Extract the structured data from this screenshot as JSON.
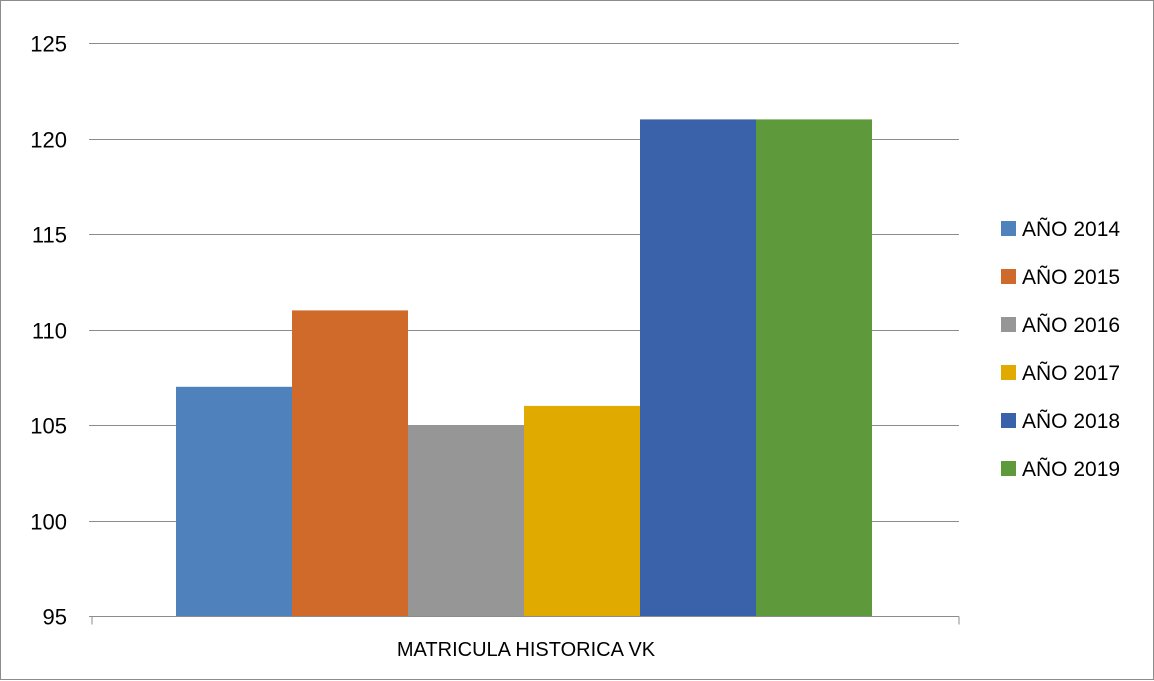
{
  "chart_data": {
    "type": "bar",
    "categories": [
      "MATRICULA HISTORICA VK"
    ],
    "series": [
      {
        "name": "AÑO 2014",
        "values": [
          107
        ],
        "color": "#4f81bd"
      },
      {
        "name": "AÑO 2015",
        "values": [
          111
        ],
        "color": "#d06a2b"
      },
      {
        "name": "AÑO 2016",
        "values": [
          105
        ],
        "color": "#969696"
      },
      {
        "name": "AÑO 2017",
        "values": [
          106
        ],
        "color": "#e0aa00"
      },
      {
        "name": "AÑO 2018",
        "values": [
          121
        ],
        "color": "#3a62ab"
      },
      {
        "name": "AÑO 2019",
        "values": [
          121
        ],
        "color": "#5e9a3c"
      }
    ],
    "title": "",
    "xlabel": "",
    "ylabel": "",
    "ylim": [
      95,
      125
    ],
    "yticks": [
      95,
      100,
      105,
      110,
      115,
      120,
      125
    ],
    "grid": true,
    "legend_position": "right",
    "gridline_color": "#8c8c8c"
  }
}
